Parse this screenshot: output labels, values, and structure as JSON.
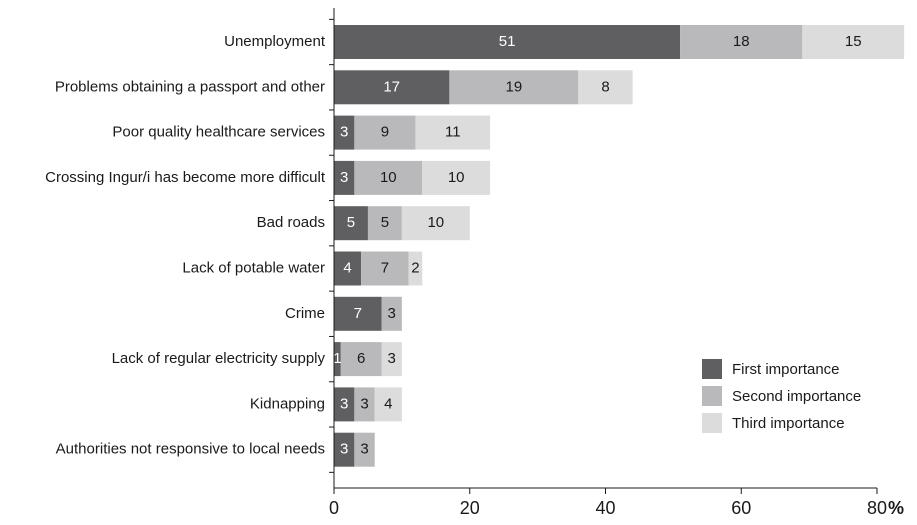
{
  "chart_data": {
    "type": "bar",
    "orientation": "horizontal",
    "stacked": true,
    "categories": [
      "Unemployment",
      "Problems obtaining a passport and other",
      "Poor quality healthcare services",
      "Crossing Ingur/i has become more difficult",
      "Bad roads",
      "Lack of potable water",
      "Crime",
      "Lack of regular electricity supply",
      "Kidnapping",
      "Authorities not responsive to local needs"
    ],
    "series": [
      {
        "name": "First importance",
        "color": "#5f5f61",
        "label_color": "#ffffff",
        "values": [
          51,
          17,
          3,
          3,
          5,
          4,
          7,
          1,
          3,
          3
        ]
      },
      {
        "name": "Second importance",
        "color": "#b9b9bb",
        "label_color": "#1a1a1a",
        "values": [
          18,
          19,
          9,
          10,
          5,
          7,
          3,
          6,
          3,
          3
        ]
      },
      {
        "name": "Third importance",
        "color": "#dcdcdd",
        "label_color": "#1a1a1a",
        "values": [
          15,
          8,
          11,
          10,
          10,
          2,
          0,
          3,
          4,
          0
        ]
      }
    ],
    "xlim": [
      0,
      80
    ],
    "xticks": [
      0,
      20,
      40,
      60,
      80
    ],
    "tick_labels": [
      "0",
      "20",
      "40",
      "60",
      "80"
    ],
    "unit": "%",
    "grid": false,
    "legend_position": "bottom-right"
  }
}
